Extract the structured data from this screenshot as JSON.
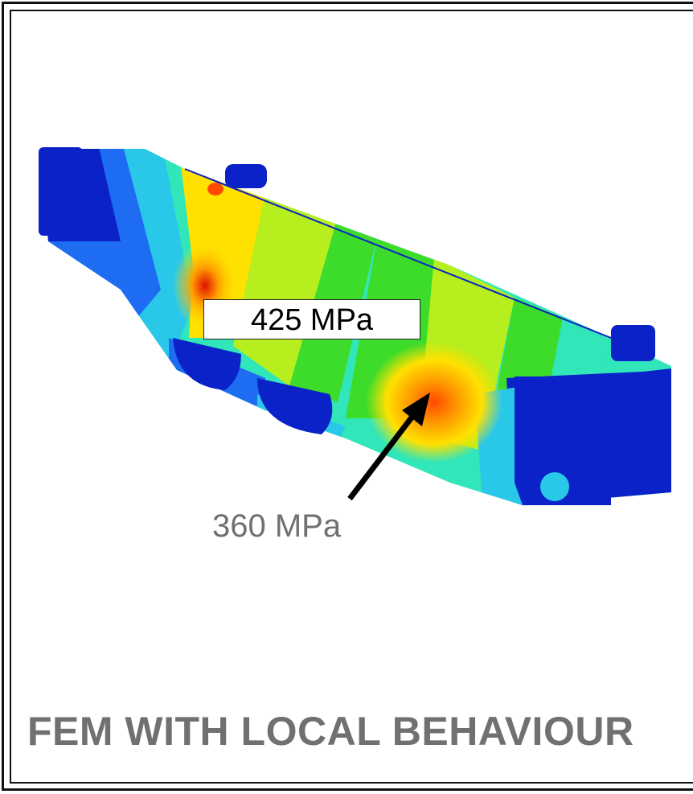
{
  "annotations": {
    "peak_stress": "425 MPa",
    "local_stress": "360 MPa"
  },
  "caption": "FEM WITH LOCAL BEHAVIOUR",
  "colors": {
    "deep_blue": "#0a22c8",
    "blue": "#1d6cf2",
    "cyan": "#2ac8e8",
    "aqua": "#31e6b8",
    "green": "#3ddc2a",
    "yellow_green": "#b6ee1e",
    "yellow": "#ffe100",
    "orange": "#ff9a00",
    "red_orange": "#ff4a00",
    "red": "#e01000",
    "text_gray": "#707070"
  }
}
